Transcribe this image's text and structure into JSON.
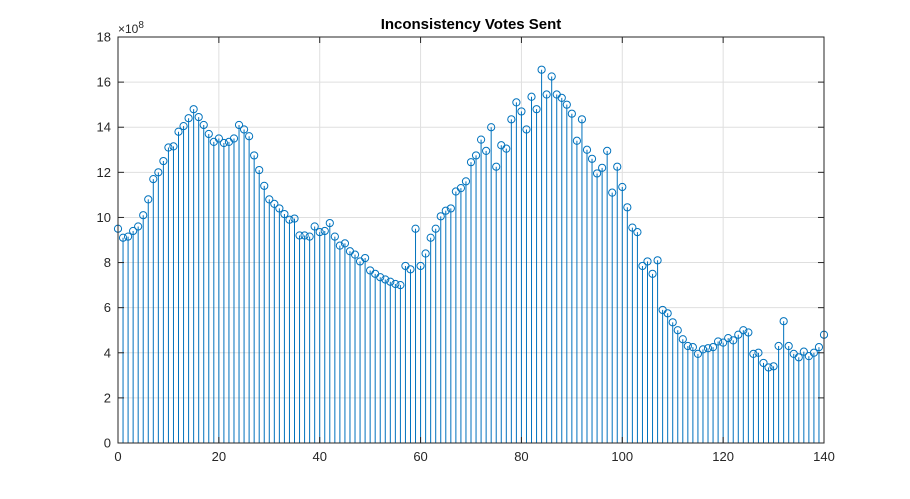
{
  "chart_data": {
    "type": "stem",
    "title": "Inconsistency Votes Sent",
    "xlabel": "",
    "ylabel": "",
    "y_exponent_label": "×10",
    "y_exponent_power": "8",
    "xlim": [
      0,
      140
    ],
    "ylim": [
      0,
      18
    ],
    "xticks": [
      "0",
      "20",
      "40",
      "60",
      "80",
      "100",
      "120",
      "140"
    ],
    "yticks": [
      "0",
      "2",
      "4",
      "6",
      "8",
      "10",
      "12",
      "14",
      "16",
      "18"
    ],
    "grid": true,
    "color": "#0072BD",
    "x": [
      0,
      1,
      2,
      3,
      4,
      5,
      6,
      7,
      8,
      9,
      10,
      11,
      12,
      13,
      14,
      15,
      16,
      17,
      18,
      19,
      20,
      21,
      22,
      23,
      24,
      25,
      26,
      27,
      28,
      29,
      30,
      31,
      32,
      33,
      34,
      35,
      36,
      37,
      38,
      39,
      40,
      41,
      42,
      43,
      44,
      45,
      46,
      47,
      48,
      49,
      50,
      51,
      52,
      53,
      54,
      55,
      56,
      57,
      58,
      59,
      60,
      61,
      62,
      63,
      64,
      65,
      66,
      67,
      68,
      69,
      70,
      71,
      72,
      73,
      74,
      75,
      76,
      77,
      78,
      79,
      80,
      81,
      82,
      83,
      84,
      85,
      86,
      87,
      88,
      89,
      90,
      91,
      92,
      93,
      94,
      95,
      96,
      97,
      98,
      99,
      100,
      101,
      102,
      103,
      104,
      105,
      106,
      107,
      108,
      109,
      110,
      111,
      112,
      113,
      114,
      115,
      116,
      117,
      118,
      119,
      120,
      121,
      122,
      123,
      124,
      125,
      126,
      127,
      128,
      129,
      130,
      131,
      132,
      133,
      134,
      135,
      136,
      137,
      138,
      139,
      140
    ],
    "values": [
      9.5,
      9.1,
      9.15,
      9.4,
      9.6,
      10.1,
      10.8,
      11.7,
      12.0,
      12.5,
      13.1,
      13.15,
      13.8,
      14.05,
      14.4,
      14.8,
      14.45,
      14.1,
      13.7,
      13.35,
      13.5,
      13.3,
      13.35,
      13.5,
      14.1,
      13.9,
      13.6,
      12.75,
      12.1,
      11.4,
      10.8,
      10.6,
      10.4,
      10.15,
      9.9,
      9.95,
      9.2,
      9.2,
      9.15,
      9.6,
      9.35,
      9.4,
      9.75,
      9.15,
      8.75,
      8.85,
      8.5,
      8.35,
      8.05,
      8.2,
      7.65,
      7.5,
      7.35,
      7.25,
      7.15,
      7.05,
      7.0,
      7.85,
      7.7,
      9.5,
      7.85,
      8.4,
      9.1,
      9.5,
      10.05,
      10.3,
      10.4,
      11.15,
      11.3,
      11.6,
      12.45,
      12.75,
      13.45,
      12.95,
      14.0,
      12.25,
      13.2,
      13.05,
      14.35,
      15.1,
      14.7,
      13.9,
      15.35,
      14.8,
      16.55,
      15.45,
      16.25,
      15.45,
      15.3,
      15.0,
      14.6,
      13.4,
      14.35,
      13.0,
      12.6,
      11.95,
      12.2,
      12.95,
      11.1,
      12.25,
      11.35,
      10.45,
      9.55,
      9.35,
      7.85,
      8.05,
      7.5,
      8.1,
      5.9,
      5.75,
      5.35,
      5.0,
      4.6,
      4.3,
      4.25,
      3.95,
      4.15,
      4.2,
      4.25,
      4.5,
      4.45,
      4.65,
      4.55,
      4.8,
      5.0,
      4.9,
      3.95,
      4.0,
      3.55,
      3.35,
      3.4,
      4.3,
      5.4,
      4.3,
      3.95,
      3.8,
      4.05,
      3.85,
      4.0,
      4.25,
      4.8
    ]
  }
}
